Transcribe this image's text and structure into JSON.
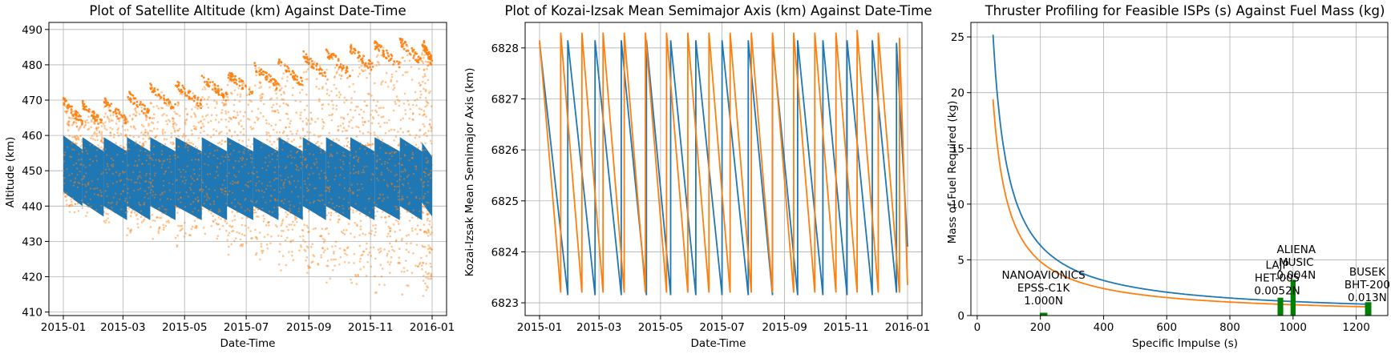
{
  "colors": {
    "series_blue": "#1f77b4",
    "series_orange": "#ff7f0e",
    "marker_green": "#008000",
    "grid": "#b0b0b0"
  },
  "chart_data": [
    {
      "type": "scatter",
      "title": "Plot of Satellite Altitude (km) Against Date-Time",
      "xlabel": "Date-Time",
      "ylabel": "Altitude (km)",
      "x_range": [
        "2015-01-01",
        "2016-01-01"
      ],
      "ylim": [
        409,
        492
      ],
      "x_ticks": [
        "2015-01",
        "2015-03",
        "2015-05",
        "2015-07",
        "2015-09",
        "2015-11",
        "2016-01"
      ],
      "y_ticks": [
        410,
        420,
        430,
        440,
        450,
        460,
        470,
        480,
        490
      ],
      "grid": true,
      "series": [
        {
          "color": "#1f77b4",
          "pattern": "dense sawtooth band",
          "cycles": [
            {
              "start": "2015-01-01",
              "top": 460,
              "bottom": 440
            },
            {
              "start": "2015-01-20",
              "top": 459.5,
              "bottom": 437
            },
            {
              "start": "2015-02-10",
              "top": 459.5,
              "bottom": 436
            },
            {
              "start": "2015-03-05",
              "top": 459.5,
              "bottom": 436
            },
            {
              "start": "2015-03-28",
              "top": 459.5,
              "bottom": 436
            },
            {
              "start": "2015-04-22",
              "top": 459.5,
              "bottom": 436
            },
            {
              "start": "2015-05-18",
              "top": 459.5,
              "bottom": 436
            },
            {
              "start": "2015-06-12",
              "top": 459.5,
              "bottom": 436
            },
            {
              "start": "2015-07-08",
              "top": 459.5,
              "bottom": 436
            },
            {
              "start": "2015-08-02",
              "top": 459.5,
              "bottom": 436
            },
            {
              "start": "2015-08-26",
              "top": 459.5,
              "bottom": 436
            },
            {
              "start": "2015-09-18",
              "top": 459.5,
              "bottom": 436
            },
            {
              "start": "2015-10-12",
              "top": 459.5,
              "bottom": 436
            },
            {
              "start": "2015-11-05",
              "top": 459.5,
              "bottom": 436
            },
            {
              "start": "2015-11-30",
              "top": 459.5,
              "bottom": 436
            },
            {
              "start": "2015-12-22",
              "top": 458,
              "bottom": 437
            }
          ],
          "end": "2016-01-01"
        },
        {
          "color": "#ff7f0e",
          "pattern": "scattered arches",
          "arches": [
            {
              "start": "2015-01-01",
              "end": "2015-01-20",
              "peak": 471,
              "trough": 438
            },
            {
              "start": "2015-01-20",
              "end": "2015-02-10",
              "peak": 470,
              "trough": 436
            },
            {
              "start": "2015-02-10",
              "end": "2015-03-05",
              "peak": 471,
              "trough": 434
            },
            {
              "start": "2015-03-05",
              "end": "2015-03-28",
              "peak": 473,
              "trough": 431
            },
            {
              "start": "2015-03-28",
              "end": "2015-04-22",
              "peak": 475,
              "trough": 430
            },
            {
              "start": "2015-04-22",
              "end": "2015-05-18",
              "peak": 476,
              "trough": 428
            },
            {
              "start": "2015-05-18",
              "end": "2015-06-12",
              "peak": 478,
              "trough": 427
            },
            {
              "start": "2015-06-12",
              "end": "2015-07-08",
              "peak": 479,
              "trough": 425
            },
            {
              "start": "2015-07-08",
              "end": "2015-08-02",
              "peak": 481,
              "trough": 423
            },
            {
              "start": "2015-08-02",
              "end": "2015-08-26",
              "peak": 482,
              "trough": 421
            },
            {
              "start": "2015-08-26",
              "end": "2015-09-18",
              "peak": 484,
              "trough": 419
            },
            {
              "start": "2015-09-18",
              "end": "2015-10-12",
              "peak": 485,
              "trough": 418
            },
            {
              "start": "2015-10-12",
              "end": "2015-11-05",
              "peak": 486,
              "trough": 416
            },
            {
              "start": "2015-11-05",
              "end": "2015-11-30",
              "peak": 487,
              "trough": 415
            },
            {
              "start": "2015-11-30",
              "end": "2015-12-22",
              "peak": 488,
              "trough": 414
            },
            {
              "start": "2015-12-22",
              "end": "2016-01-01",
              "peak": 488,
              "trough": 413
            }
          ]
        }
      ]
    },
    {
      "type": "line",
      "title": "Plot of Kozai-Izsak Mean Semimajor Axis (km) Against Date-Time",
      "xlabel": "Date-Time",
      "ylabel": "Kozai-Izsak Mean Semimajor Axis (km)",
      "x_range": [
        "2015-01-01",
        "2016-01-01"
      ],
      "ylim": [
        6822.75,
        6828.5
      ],
      "x_ticks": [
        "2015-01",
        "2015-03",
        "2015-05",
        "2015-07",
        "2015-09",
        "2015-11",
        "2016-01"
      ],
      "y_ticks": [
        6823,
        6824,
        6825,
        6826,
        6827,
        6828
      ],
      "grid": true,
      "series": [
        {
          "color": "#1f77b4",
          "points": [
            [
              "2015-01-01",
              6828.1
            ],
            [
              "2015-01-29",
              6823.15
            ],
            [
              "2015-01-29",
              6828.15
            ],
            [
              "2015-02-25",
              6823.15
            ],
            [
              "2015-02-25",
              6828.15
            ],
            [
              "2015-03-23",
              6823.15
            ],
            [
              "2015-03-23",
              6828.15
            ],
            [
              "2015-04-17",
              6823.15
            ],
            [
              "2015-04-17",
              6828.15
            ],
            [
              "2015-05-11",
              6823.15
            ],
            [
              "2015-05-11",
              6828.15
            ],
            [
              "2015-06-05",
              6823.15
            ],
            [
              "2015-06-05",
              6828.15
            ],
            [
              "2015-07-01",
              6823.15
            ],
            [
              "2015-07-01",
              6828.15
            ],
            [
              "2015-07-27",
              6823.15
            ],
            [
              "2015-07-27",
              6828.15
            ],
            [
              "2015-08-20",
              6823.15
            ],
            [
              "2015-08-20",
              6828.15
            ],
            [
              "2015-09-14",
              6823.15
            ],
            [
              "2015-09-14",
              6828.15
            ],
            [
              "2015-10-09",
              6823.15
            ],
            [
              "2015-10-09",
              6828.15
            ],
            [
              "2015-11-02",
              6823.15
            ],
            [
              "2015-11-02",
              6828.15
            ],
            [
              "2015-11-27",
              6823.15
            ],
            [
              "2015-11-27",
              6828.15
            ],
            [
              "2015-12-21",
              6823.2
            ],
            [
              "2015-12-21",
              6828.1
            ],
            [
              "2016-01-01",
              6824.1
            ]
          ]
        },
        {
          "color": "#ff7f0e",
          "points": [
            [
              "2015-01-01",
              6828.15
            ],
            [
              "2015-01-22",
              6823.2
            ],
            [
              "2015-01-22",
              6828.3
            ],
            [
              "2015-02-12",
              6823.2
            ],
            [
              "2015-02-12",
              6828.3
            ],
            [
              "2015-03-05",
              6823.2
            ],
            [
              "2015-03-05",
              6828.3
            ],
            [
              "2015-03-26",
              6823.2
            ],
            [
              "2015-03-26",
              6828.3
            ],
            [
              "2015-04-16",
              6823.2
            ],
            [
              "2015-04-16",
              6828.3
            ],
            [
              "2015-05-07",
              6823.2
            ],
            [
              "2015-05-07",
              6828.3
            ],
            [
              "2015-05-28",
              6823.2
            ],
            [
              "2015-05-28",
              6828.3
            ],
            [
              "2015-06-18",
              6823.2
            ],
            [
              "2015-06-18",
              6828.3
            ],
            [
              "2015-07-09",
              6823.2
            ],
            [
              "2015-07-09",
              6828.3
            ],
            [
              "2015-07-30",
              6823.2
            ],
            [
              "2015-07-30",
              6828.3
            ],
            [
              "2015-08-20",
              6823.2
            ],
            [
              "2015-08-20",
              6828.3
            ],
            [
              "2015-09-10",
              6823.2
            ],
            [
              "2015-09-10",
              6828.3
            ],
            [
              "2015-10-01",
              6823.2
            ],
            [
              "2015-10-01",
              6828.3
            ],
            [
              "2015-10-22",
              6823.2
            ],
            [
              "2015-10-22",
              6828.3
            ],
            [
              "2015-11-12",
              6823.2
            ],
            [
              "2015-11-12",
              6828.35
            ],
            [
              "2015-12-03",
              6823.2
            ],
            [
              "2015-12-03",
              6828.3
            ],
            [
              "2015-12-24",
              6823.2
            ],
            [
              "2015-12-24",
              6828.2
            ],
            [
              "2016-01-01",
              6823.35
            ]
          ]
        }
      ]
    },
    {
      "type": "line",
      "title": "Thruster Profiling for Feasible ISPs (s) Against Fuel Mass (kg)",
      "xlabel": "Specific Impulse (s)",
      "ylabel": "Mass of Fuel Required (kg)",
      "xlim": [
        -20,
        1300
      ],
      "ylim": [
        0,
        26.3
      ],
      "x_ticks": [
        0,
        200,
        400,
        600,
        800,
        1000,
        1200
      ],
      "y_ticks": [
        0,
        5,
        10,
        15,
        20,
        25
      ],
      "grid": true,
      "series": [
        {
          "color": "#1f77b4",
          "curve": "inverse",
          "k": 1260,
          "x_start": 50,
          "x_end": 1240
        },
        {
          "color": "#ff7f0e",
          "curve": "inverse",
          "k": 970,
          "x_start": 50,
          "x_end": 1240
        }
      ],
      "bars": [
        {
          "x": 210,
          "height": 0.25,
          "width": 24,
          "color": "#008000"
        },
        {
          "x": 960,
          "height": 1.6,
          "width": 18,
          "color": "#008000"
        },
        {
          "x": 1000,
          "height": 3.2,
          "width": 16,
          "color": "#008000"
        },
        {
          "x": 1238,
          "height": 1.2,
          "width": 20,
          "color": "#008000"
        }
      ],
      "annotations": [
        {
          "x": 210,
          "y": 1.0,
          "lines": [
            "NANOAVIONICS",
            "EPSS-C1K",
            "1.000N"
          ]
        },
        {
          "x": 950,
          "y": 1.9,
          "lines": [
            "LAJP",
            "HET-005",
            "0.0052N"
          ]
        },
        {
          "x": 1010,
          "y": 3.3,
          "lines": [
            "ALIENA",
            "MUSIC",
            "0.004N"
          ]
        },
        {
          "x": 1235,
          "y": 1.3,
          "lines": [
            "BUSEK",
            "BHT-200",
            "0.013N"
          ]
        }
      ]
    }
  ]
}
